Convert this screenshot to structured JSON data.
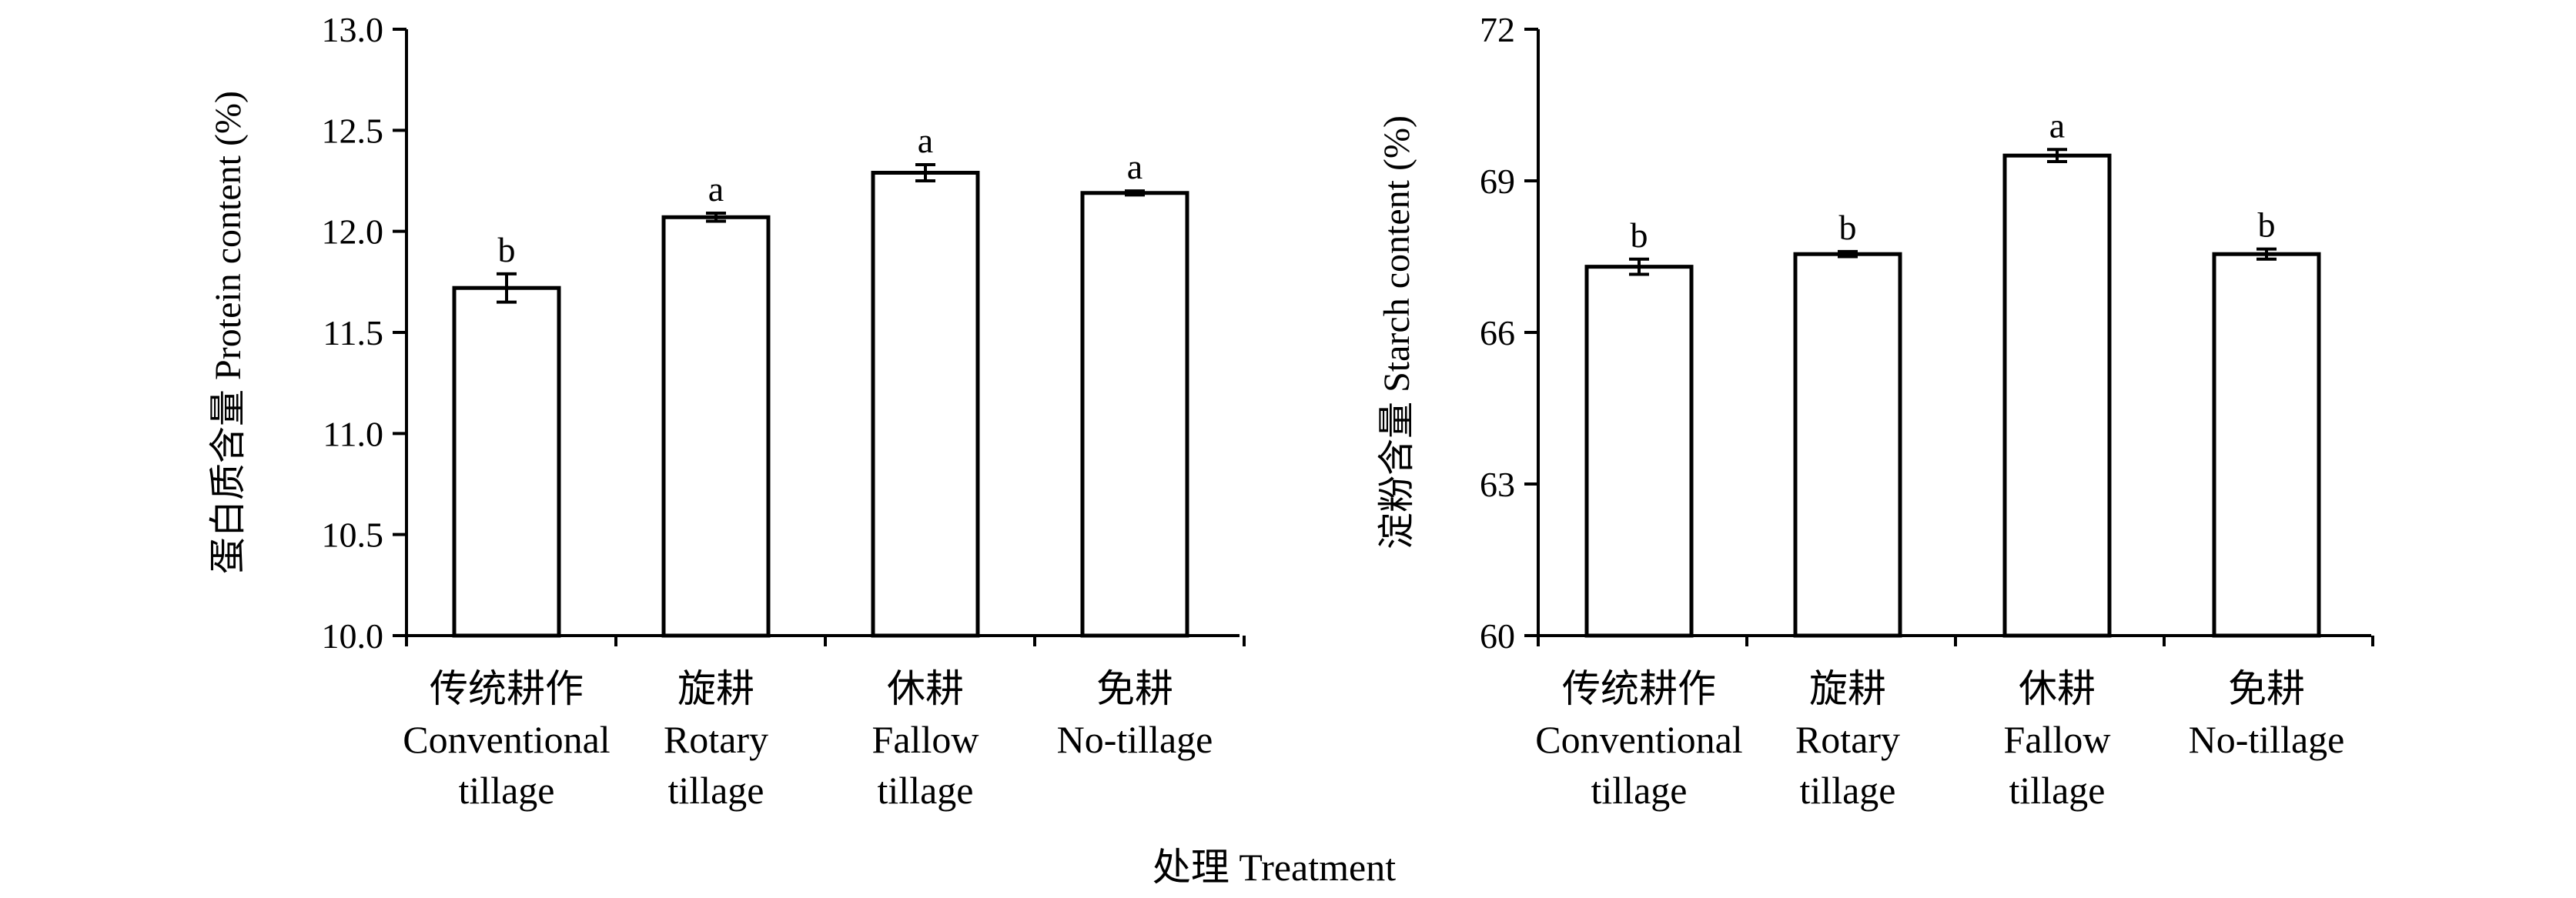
{
  "shared_xlabel": "处理 Treatment",
  "chart_data": [
    {
      "type": "bar",
      "categories": [
        [
          "传统耕作",
          "Conventional",
          "tillage"
        ],
        [
          "旋耕",
          "Rotary",
          "tillage"
        ],
        [
          "休耕",
          "Fallow",
          "tillage"
        ],
        [
          "免耕",
          "No-tillage"
        ]
      ],
      "values": [
        11.72,
        12.07,
        12.29,
        12.19
      ],
      "errors": [
        0.07,
        0.02,
        0.04,
        0.01
      ],
      "significance": [
        "b",
        "a",
        "a",
        "a"
      ],
      "ylabel": "蛋白质含量 Protein content (%)",
      "ylim": [
        10.0,
        13.0
      ],
      "yticks": [
        "10.0",
        "10.5",
        "11.0",
        "11.5",
        "12.0",
        "12.5",
        "13.0"
      ],
      "grid": false
    },
    {
      "type": "bar",
      "categories": [
        [
          "传统耕作",
          "Conventional",
          "tillage"
        ],
        [
          "旋耕",
          "Rotary",
          "tillage"
        ],
        [
          "休耕",
          "Fallow",
          "tillage"
        ],
        [
          "免耕",
          "No-tillage"
        ]
      ],
      "values": [
        67.3,
        67.55,
        69.5,
        67.55
      ],
      "errors": [
        0.15,
        0.05,
        0.12,
        0.1
      ],
      "significance": [
        "b",
        "b",
        "a",
        "b"
      ],
      "ylabel": "淀粉含量 Starch content (%)",
      "ylim": [
        60,
        72
      ],
      "yticks": [
        "60",
        "63",
        "66",
        "69",
        "72"
      ],
      "grid": false
    }
  ]
}
